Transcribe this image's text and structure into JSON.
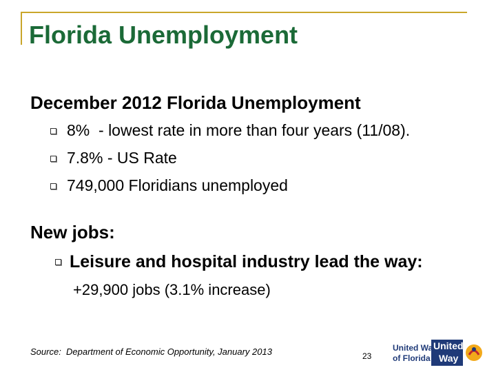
{
  "header": {
    "title": "Florida Unemployment"
  },
  "section1": {
    "heading": "December 2012 Florida Unemployment",
    "bullets": [
      "8%  - lowest rate in more than four years (11/08).",
      "7.8% - US Rate",
      "749,000 Floridians unemployed"
    ]
  },
  "section2": {
    "heading": "New jobs:",
    "bullets": [
      {
        "text": "Leisure and hospital industry lead the way:",
        "sub": "+29,900 jobs (3.1% increase)"
      }
    ]
  },
  "footer": {
    "source": "Source:  Department of Economic Opportunity, January 2013",
    "page_number": 23
  },
  "logo": {
    "left_line1": "United Way",
    "left_line2": "of Florida",
    "box_line1": "United",
    "box_line2": "Way"
  }
}
